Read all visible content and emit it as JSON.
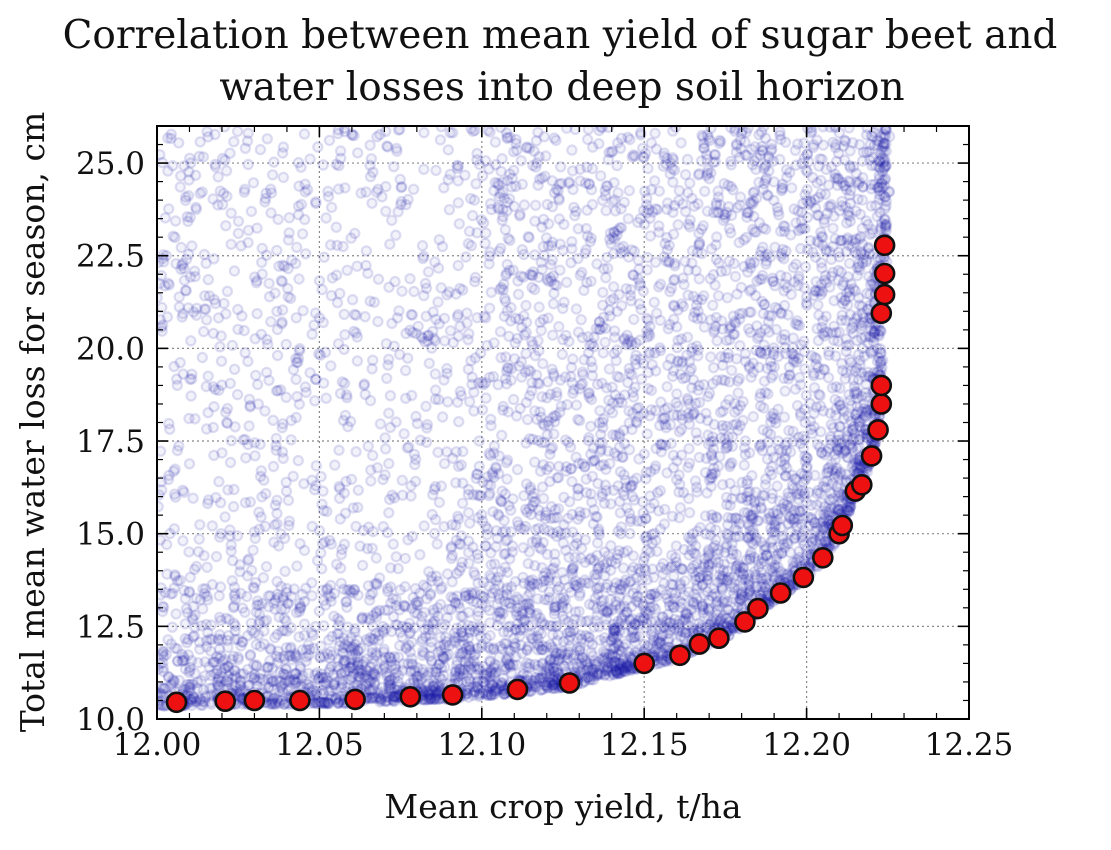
{
  "chart_data": {
    "type": "scatter",
    "title_line1": "Correlation between mean yield of sugar beet and",
    "title_line2": "water losses into deep soil horizon",
    "xlabel": "Mean crop yield, t/ha",
    "ylabel": "Total mean water loss for season, cm",
    "xlim": [
      12.0,
      12.25
    ],
    "ylim": [
      10.0,
      26.0
    ],
    "x_ticks": [
      "12.00",
      "12.05",
      "12.10",
      "12.15",
      "12.20",
      "12.25"
    ],
    "y_ticks": [
      "10.0",
      "12.5",
      "15.0",
      "17.5",
      "20.0",
      "22.5",
      "25.0"
    ],
    "grid": true,
    "series": [
      {
        "style": "semi-transparent blue hollow circles (dense cloud, bounded by the Pareto front)",
        "color": "#1a1aa8"
      },
      {
        "style": "red filled circles with black edge (Pareto front)",
        "color": "#ee1111",
        "x": [
          12.006,
          12.021,
          12.03,
          12.044,
          12.061,
          12.078,
          12.091,
          12.111,
          12.127,
          12.15,
          12.161,
          12.167,
          12.173,
          12.181,
          12.185,
          12.192,
          12.199,
          12.205,
          12.21,
          12.211,
          12.215,
          12.217,
          12.22,
          12.222,
          12.223,
          12.223,
          12.223,
          12.224,
          12.224,
          12.224
        ],
        "y": [
          10.45,
          10.48,
          10.5,
          10.5,
          10.53,
          10.6,
          10.65,
          10.8,
          10.97,
          11.5,
          11.72,
          12.02,
          12.18,
          12.62,
          12.98,
          13.4,
          13.82,
          14.35,
          15.0,
          15.22,
          16.15,
          16.32,
          17.1,
          17.8,
          18.5,
          19.0,
          20.95,
          21.45,
          22.02,
          22.78
        ]
      }
    ]
  }
}
